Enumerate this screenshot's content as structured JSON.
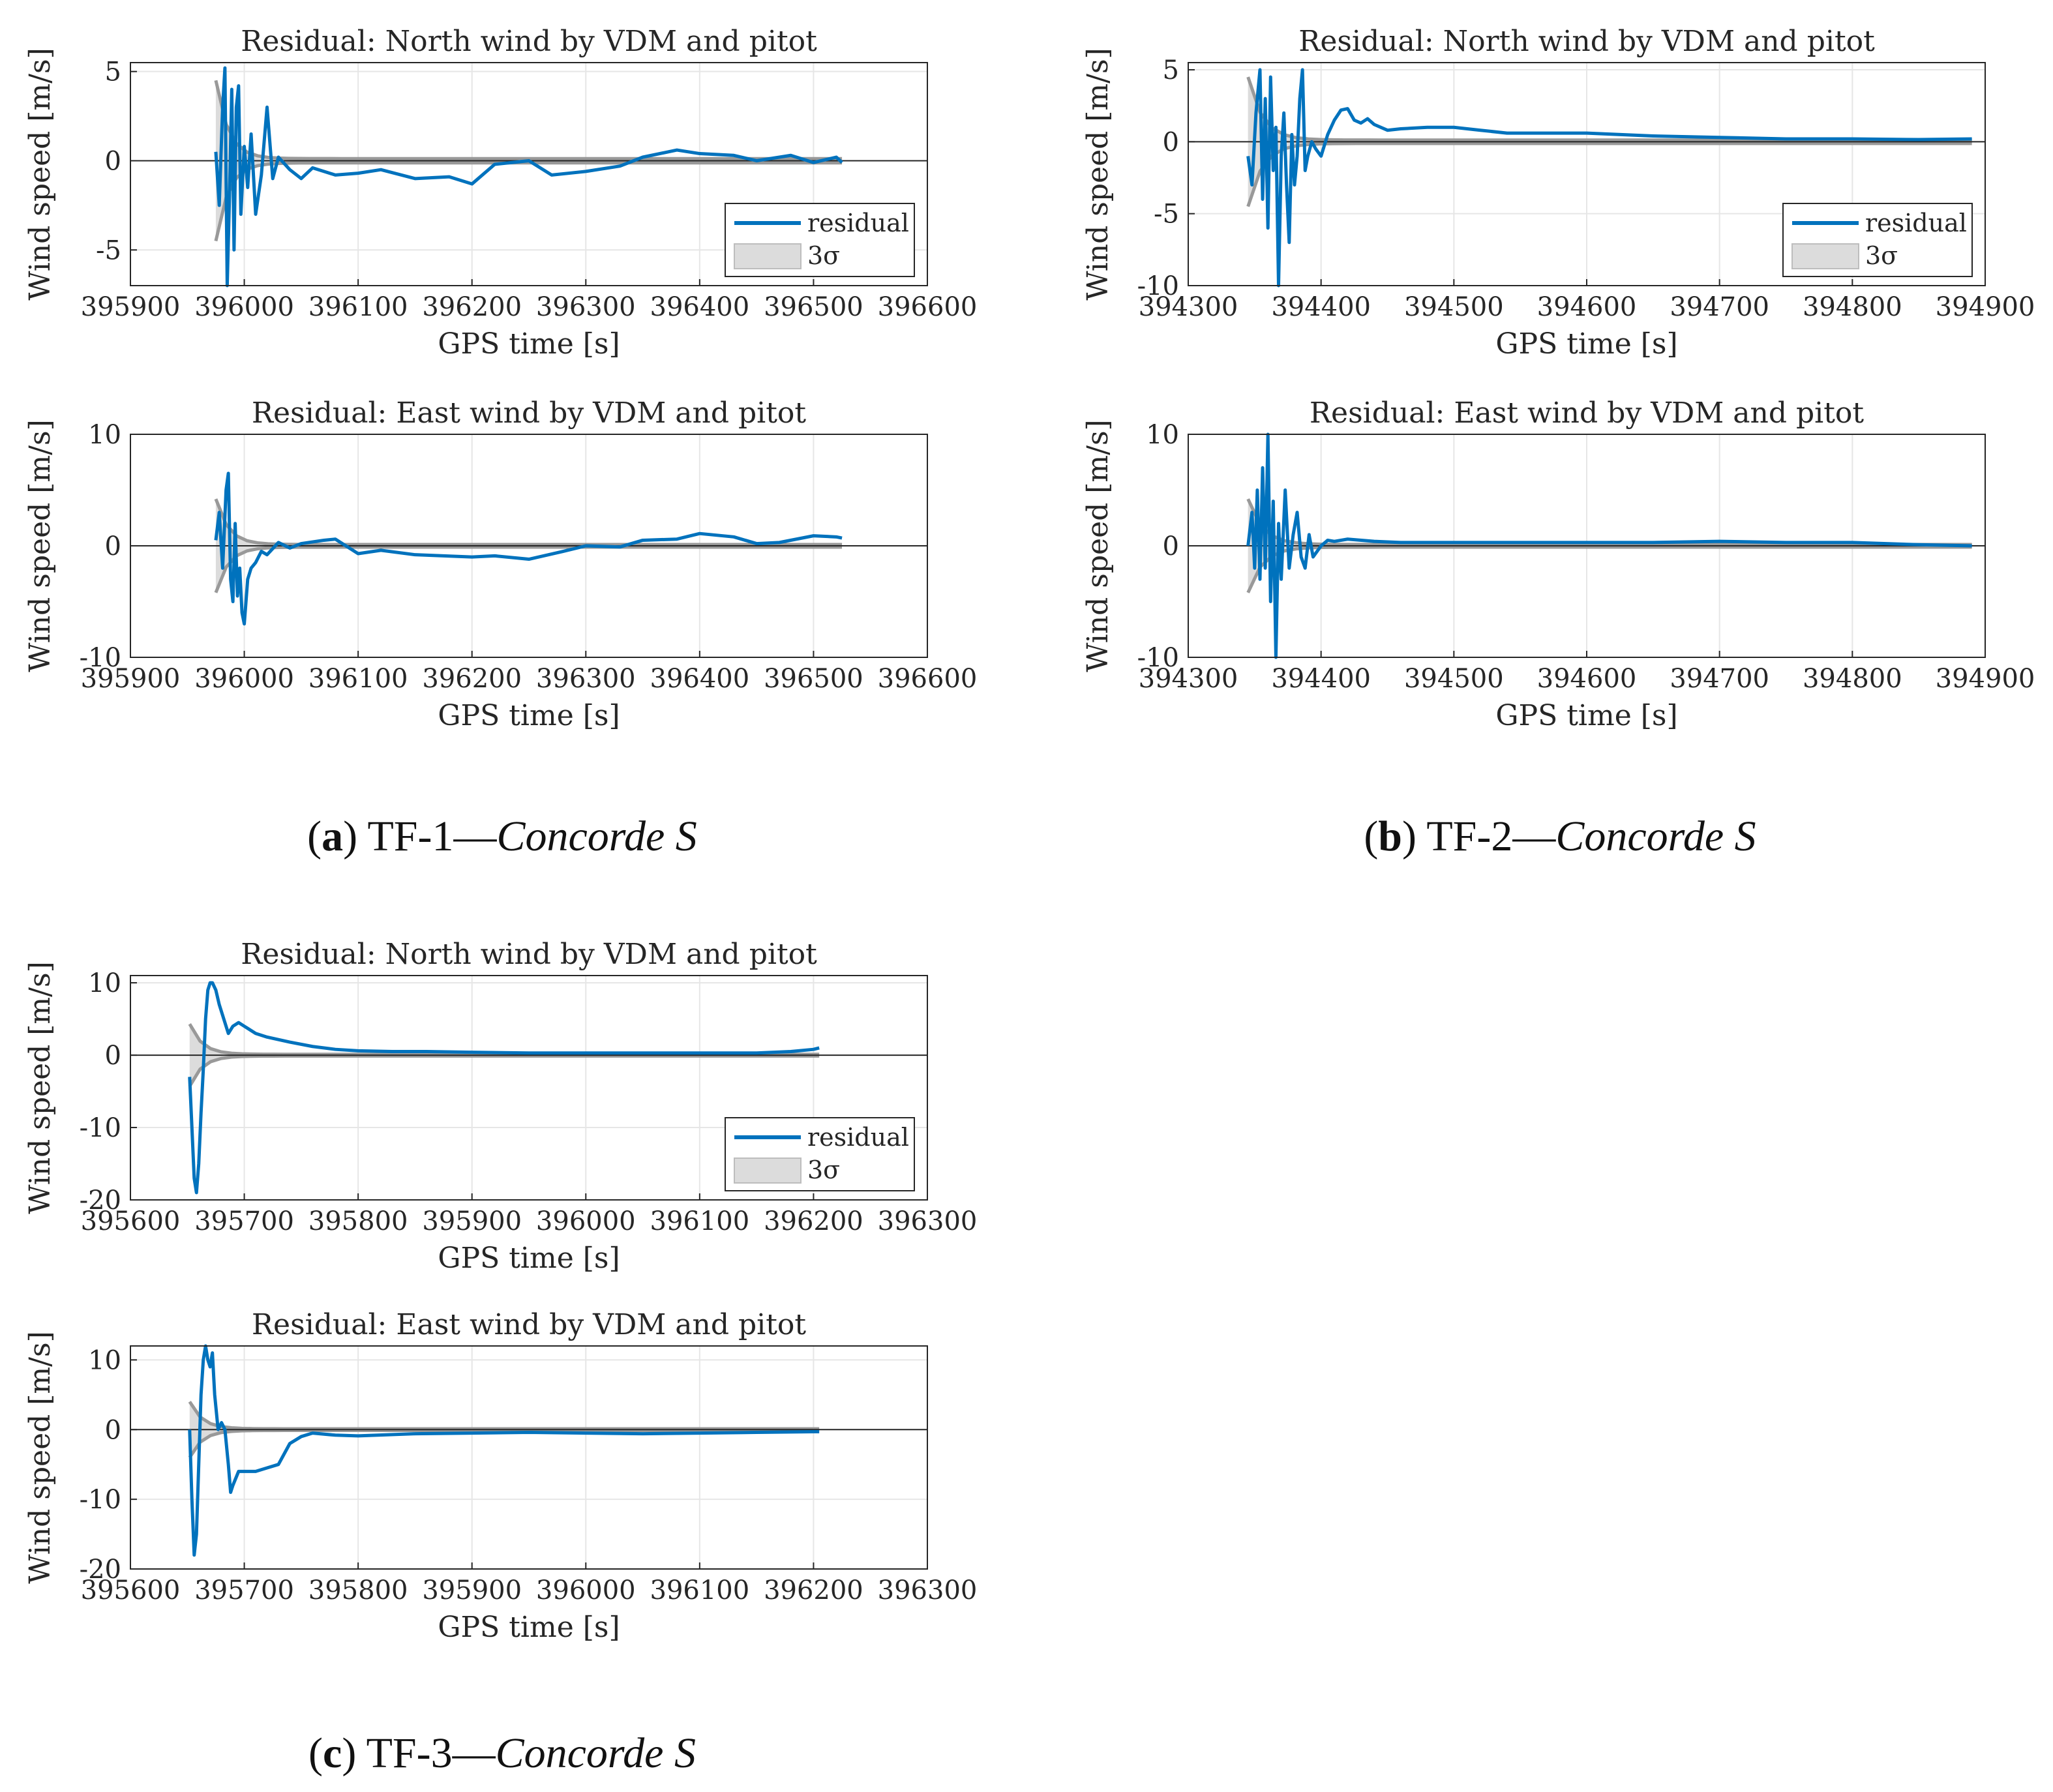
{
  "captions": [
    {
      "label": "a",
      "text": "TF-1—",
      "italic": "Concorde S"
    },
    {
      "label": "b",
      "text": "TF-2—",
      "italic": "Concorde S"
    },
    {
      "label": "c",
      "text": "TF-3—",
      "italic": "Concorde S"
    }
  ],
  "colors": {
    "residual": "#0072BD",
    "sigma_fill": "#DCDCDC",
    "sigma_line": "#999999",
    "grid": "#E6E6E6",
    "axis": "#262626"
  },
  "chart_data": [
    {
      "type": "line",
      "group": "a",
      "title": "Residual: North wind by VDM and pitot",
      "xlabel": "GPS time [s]",
      "ylabel": "Wind speed [m/s]",
      "xlim": [
        395900,
        396600
      ],
      "ylim": [
        -7,
        5.5
      ],
      "xticks": [
        395900,
        396000,
        396100,
        396200,
        396300,
        396400,
        396500,
        396600
      ],
      "yticks": [
        -5,
        0,
        5
      ],
      "legend": [
        "residual",
        "3σ"
      ],
      "legend_position": "lower-right",
      "t0": 395975,
      "t1": 396525,
      "sigma_start": 4.5,
      "series": [
        {
          "name": "residual",
          "x": [
            395975,
            395978,
            395981,
            395983,
            395985,
            395987,
            395989,
            395991,
            395993,
            395995,
            395997,
            396000,
            396003,
            396006,
            396010,
            396015,
            396020,
            396025,
            396030,
            396040,
            396050,
            396060,
            396080,
            396100,
            396120,
            396150,
            396180,
            396200,
            396220,
            396250,
            396270,
            396300,
            396330,
            396350,
            396380,
            396400,
            396430,
            396450,
            396480,
            396500,
            396520,
            396525
          ],
          "y": [
            0.5,
            -2.5,
            3.0,
            5.2,
            -7.0,
            -2.0,
            4.0,
            -5.0,
            3.0,
            4.2,
            -3.0,
            0.8,
            -1.5,
            1.5,
            -3.0,
            -0.8,
            3.0,
            -1.0,
            0.2,
            -0.5,
            -1.0,
            -0.4,
            -0.8,
            -0.7,
            -0.5,
            -1.0,
            -0.9,
            -1.3,
            -0.2,
            0.0,
            -0.8,
            -0.6,
            -0.3,
            0.2,
            0.6,
            0.4,
            0.3,
            0.0,
            0.3,
            -0.1,
            0.2,
            -0.1
          ]
        }
      ]
    },
    {
      "type": "line",
      "group": "a",
      "title": "Residual: East wind by VDM and pitot",
      "xlabel": "GPS time [s]",
      "ylabel": "Wind speed [m/s]",
      "xlim": [
        395900,
        396600
      ],
      "ylim": [
        -10,
        10
      ],
      "xticks": [
        395900,
        396000,
        396100,
        396200,
        396300,
        396400,
        396500,
        396600
      ],
      "yticks": [
        -10,
        0,
        10
      ],
      "t0": 395975,
      "t1": 396525,
      "sigma_start": 4.2,
      "series": [
        {
          "name": "residual",
          "x": [
            395975,
            395978,
            395981,
            395984,
            395986,
            395988,
            395990,
            395992,
            395994,
            395996,
            395998,
            396000,
            396003,
            396006,
            396010,
            396015,
            396020,
            396030,
            396040,
            396050,
            396070,
            396080,
            396100,
            396120,
            396150,
            396200,
            396220,
            396250,
            396280,
            396300,
            396330,
            396350,
            396380,
            396400,
            396430,
            396450,
            396470,
            396500,
            396520,
            396525
          ],
          "y": [
            0.5,
            3.0,
            -2.0,
            5.0,
            6.5,
            -3.0,
            -5.0,
            2.0,
            -4.5,
            -2.0,
            -6.0,
            -7.0,
            -3.0,
            -2.0,
            -1.5,
            -0.5,
            -0.8,
            0.3,
            -0.2,
            0.2,
            0.5,
            0.6,
            -0.7,
            -0.4,
            -0.8,
            -1.0,
            -0.9,
            -1.2,
            -0.5,
            0.0,
            -0.1,
            0.5,
            0.6,
            1.1,
            0.8,
            0.2,
            0.3,
            0.9,
            0.8,
            0.7
          ]
        }
      ]
    },
    {
      "type": "line",
      "group": "b",
      "title": "Residual: North wind by VDM and pitot",
      "xlabel": "GPS time [s]",
      "ylabel": "Wind speed [m/s]",
      "xlim": [
        394300,
        394900
      ],
      "ylim": [
        -10,
        5.5
      ],
      "xticks": [
        394300,
        394400,
        394500,
        394600,
        394700,
        394800,
        394900
      ],
      "yticks": [
        -10,
        -5,
        0,
        5
      ],
      "legend": [
        "residual",
        "3σ"
      ],
      "legend_position": "lower-right",
      "t0": 394345,
      "t1": 394890,
      "sigma_start": 4.5,
      "series": [
        {
          "name": "residual",
          "x": [
            394345,
            394348,
            394351,
            394354,
            394356,
            394358,
            394360,
            394362,
            394364,
            394366,
            394368,
            394370,
            394372,
            394374,
            394376,
            394378,
            394380,
            394382,
            394384,
            394386,
            394388,
            394390,
            394393,
            394396,
            394400,
            394405,
            394410,
            394415,
            394420,
            394425,
            394430,
            394435,
            394440,
            394450,
            394460,
            394480,
            394500,
            394520,
            394540,
            394560,
            394600,
            394650,
            394700,
            394750,
            394800,
            394850,
            394890
          ],
          "y": [
            -1,
            -3,
            2,
            5,
            -4,
            3,
            -6,
            4.5,
            -2,
            1,
            -10,
            -1,
            2,
            -3,
            -7,
            0.5,
            -3,
            -1,
            3,
            5,
            -2,
            -1,
            0,
            -0.5,
            -1,
            0.5,
            1.5,
            2.2,
            2.3,
            1.5,
            1.3,
            1.6,
            1.2,
            0.8,
            0.9,
            1.0,
            1.0,
            0.8,
            0.6,
            0.6,
            0.6,
            0.4,
            0.3,
            0.2,
            0.2,
            0.15,
            0.2
          ]
        }
      ]
    },
    {
      "type": "line",
      "group": "b",
      "title": "Residual: East wind by VDM and pitot",
      "xlabel": "GPS time [s]",
      "ylabel": "Wind speed [m/s]",
      "xlim": [
        394300,
        394900
      ],
      "ylim": [
        -10,
        10
      ],
      "xticks": [
        394300,
        394400,
        394500,
        394600,
        394700,
        394800,
        394900
      ],
      "yticks": [
        -10,
        0,
        10
      ],
      "t0": 394345,
      "t1": 394890,
      "sigma_start": 4.2,
      "series": [
        {
          "name": "residual",
          "x": [
            394345,
            394348,
            394350,
            394352,
            394354,
            394356,
            394358,
            394360,
            394362,
            394364,
            394366,
            394368,
            394370,
            394373,
            394376,
            394379,
            394382,
            394385,
            394388,
            394391,
            394394,
            394397,
            394400,
            394405,
            394410,
            394420,
            394440,
            394460,
            394500,
            394550,
            394600,
            394650,
            394700,
            394750,
            394800,
            394850,
            394890
          ],
          "y": [
            0,
            3,
            -2,
            5,
            -3,
            7,
            -2,
            10,
            -5,
            4,
            -10,
            2,
            -3,
            5,
            -2,
            1,
            3,
            -1,
            -2,
            1,
            -1,
            -0.5,
            0,
            0.5,
            0.4,
            0.6,
            0.4,
            0.3,
            0.3,
            0.3,
            0.3,
            0.3,
            0.4,
            0.3,
            0.3,
            0.1,
            0.0
          ]
        }
      ]
    },
    {
      "type": "line",
      "group": "c",
      "title": "Residual: North wind by VDM and pitot",
      "xlabel": "GPS time [s]",
      "ylabel": "Wind speed [m/s]",
      "xlim": [
        395600,
        396300
      ],
      "ylim": [
        -20,
        11
      ],
      "xticks": [
        395600,
        395700,
        395800,
        395900,
        396000,
        396100,
        396200,
        396300
      ],
      "yticks": [
        -20,
        -10,
        0,
        10
      ],
      "legend": [
        "residual",
        "3σ"
      ],
      "legend_position": "lower-right",
      "t0": 395652,
      "t1": 396205,
      "sigma_start": 4.3,
      "series": [
        {
          "name": "residual",
          "x": [
            395652,
            395654,
            395656,
            395658,
            395660,
            395662,
            395664,
            395666,
            395668,
            395670,
            395672,
            395675,
            395678,
            395682,
            395686,
            395690,
            395695,
            395700,
            395710,
            395720,
            395740,
            395760,
            395780,
            395800,
            395830,
            395860,
            395900,
            395950,
            396000,
            396050,
            396100,
            396150,
            396180,
            396200,
            396205
          ],
          "y": [
            -3,
            -10,
            -17,
            -19,
            -15,
            -8,
            -2,
            5,
            9,
            10,
            10,
            9,
            7,
            5,
            3,
            4,
            4.5,
            4,
            3,
            2.5,
            1.8,
            1.2,
            0.8,
            0.6,
            0.5,
            0.5,
            0.4,
            0.3,
            0.3,
            0.3,
            0.3,
            0.3,
            0.5,
            0.8,
            1.0
          ]
        }
      ]
    },
    {
      "type": "line",
      "group": "c",
      "title": "Residual: East wind by VDM and pitot",
      "xlabel": "GPS time [s]",
      "ylabel": "Wind speed [m/s]",
      "xlim": [
        395600,
        396300
      ],
      "ylim": [
        -20,
        12
      ],
      "xticks": [
        395600,
        395700,
        395800,
        395900,
        396000,
        396100,
        396200,
        396300
      ],
      "yticks": [
        -20,
        -10,
        0,
        10
      ],
      "t0": 395652,
      "t1": 396205,
      "sigma_start": 4.0,
      "series": [
        {
          "name": "residual",
          "x": [
            395652,
            395654,
            395656,
            395658,
            395660,
            395662,
            395664,
            395666,
            395668,
            395670,
            395672,
            395674,
            395677,
            395680,
            395683,
            395686,
            395688,
            395690,
            395695,
            395700,
            395710,
            395720,
            395730,
            395740,
            395750,
            395760,
            395780,
            395800,
            395850,
            395900,
            395950,
            396000,
            396050,
            396100,
            396150,
            396200,
            396205
          ],
          "y": [
            0,
            -10,
            -18,
            -15,
            -5,
            5,
            10,
            12,
            10,
            9,
            11,
            5,
            0,
            1,
            0,
            -5,
            -9,
            -8,
            -6,
            -6,
            -6,
            -5.5,
            -5,
            -2,
            -1,
            -0.5,
            -0.8,
            -0.9,
            -0.6,
            -0.5,
            -0.4,
            -0.5,
            -0.6,
            -0.5,
            -0.4,
            -0.3,
            -0.3
          ]
        }
      ]
    }
  ]
}
